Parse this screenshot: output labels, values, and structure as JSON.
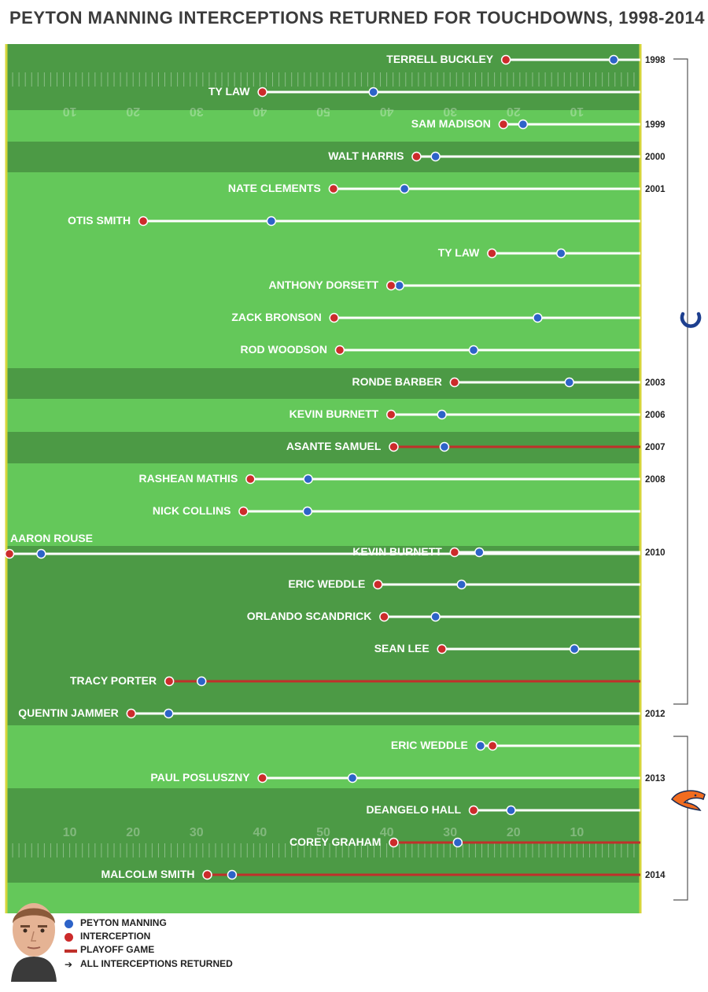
{
  "title": "PEYTON MANNING INTERCEPTIONS RETURNED FOR TOUCHDOWNS, 1998-2014",
  "colors": {
    "field_light": "#64c85a",
    "field_dark": "#4c9a45",
    "peyton": "#2d63c8",
    "interception": "#cc2b2b",
    "playoff": "#c0302a",
    "regular_line": "#ffffff",
    "border": "#d5d53a"
  },
  "icons": {
    "colts": "horseshoe-icon",
    "broncos": "bronco-head-icon",
    "photo": "peyton-manning-photo"
  },
  "yard_numbers_top": [
    "10",
    "20",
    "30",
    "40",
    "50",
    "40",
    "30",
    "20",
    "10"
  ],
  "yard_numbers_bottom": [
    "10",
    "20",
    "30",
    "40",
    "50",
    "40",
    "30",
    "20",
    "10"
  ],
  "legend": {
    "peyton": "PEYTON MANNING",
    "interception": "INTERCEPTION",
    "playoff": "PLAYOFF GAME",
    "all": "ALL INTERCEPTIONS RETURNED"
  },
  "chart_data": {
    "type": "dot-range",
    "title": "PEYTON MANNING INTERCEPTIONS RETURNED FOR TOUCHDOWNS, 1998-2014",
    "x_unit": "yards",
    "xlim": [
      0,
      100
    ],
    "series": [
      {
        "name": "PEYTON MANNING",
        "key": "peyton"
      },
      {
        "name": "INTERCEPTION",
        "key": "interception"
      }
    ],
    "rows": [
      {
        "player": "TERRELL BUCKLEY",
        "interception": 78.8,
        "peyton": 95.8,
        "playoff": false,
        "year": "1998"
      },
      {
        "player": "TY LAW",
        "interception": 40.4,
        "peyton": 57.9,
        "playoff": false,
        "year": ""
      },
      {
        "player": "SAM MADISON",
        "interception": 78.4,
        "peyton": 81.5,
        "playoff": false,
        "year": "1999"
      },
      {
        "player": "WALT HARRIS",
        "interception": 64.7,
        "peyton": 67.7,
        "playoff": false,
        "year": "2000"
      },
      {
        "player": "NATE CLEMENTS",
        "interception": 51.6,
        "peyton": 62.8,
        "playoff": false,
        "year": "2001"
      },
      {
        "player": "OTIS SMITH",
        "interception": 21.6,
        "peyton": 41.8,
        "playoff": false,
        "year": ""
      },
      {
        "player": "TY LAW",
        "interception": 76.6,
        "peyton": 87.5,
        "playoff": false,
        "year": ""
      },
      {
        "player": "ANTHONY DORSETT",
        "interception": 60.7,
        "peyton": 62.0,
        "playoff": false,
        "year": ""
      },
      {
        "player": "ZACK BRONSON",
        "interception": 51.7,
        "peyton": 83.8,
        "playoff": false,
        "year": ""
      },
      {
        "player": "ROD WOODSON",
        "interception": 52.6,
        "peyton": 73.7,
        "playoff": false,
        "year": ""
      },
      {
        "player": "RONDE BARBER",
        "interception": 70.7,
        "peyton": 88.8,
        "playoff": false,
        "year": "2003"
      },
      {
        "player": "KEVIN BURNETT",
        "interception": 60.7,
        "peyton": 68.7,
        "playoff": false,
        "year": "2006"
      },
      {
        "player": "ASANTE SAMUEL",
        "interception": 61.1,
        "peyton": 69.1,
        "playoff": true,
        "year": "2007"
      },
      {
        "player": "RASHEAN MATHIS",
        "interception": 38.5,
        "peyton": 47.6,
        "playoff": false,
        "year": "2008"
      },
      {
        "player": "NICK COLLINS",
        "interception": 37.4,
        "peyton": 47.5,
        "playoff": false,
        "year": ""
      },
      {
        "player": "AARON ROUSE",
        "interception": 0.5,
        "peyton": 5.5,
        "playoff": false,
        "year": ""
      },
      {
        "player": "KEVIN BURNETT",
        "interception": 70.7,
        "peyton": 74.6,
        "playoff": false,
        "year": "2010"
      },
      {
        "player": "ERIC WEDDLE",
        "interception": 58.6,
        "peyton": 71.8,
        "playoff": false,
        "year": ""
      },
      {
        "player": "ORLANDO SCANDRICK",
        "interception": 59.6,
        "peyton": 67.7,
        "playoff": false,
        "year": ""
      },
      {
        "player": "SEAN LEE",
        "interception": 68.7,
        "peyton": 89.6,
        "playoff": false,
        "year": ""
      },
      {
        "player": "TRACY PORTER",
        "interception": 25.7,
        "peyton": 30.8,
        "playoff": true,
        "year": ""
      },
      {
        "player": "QUENTIN JAMMER",
        "interception": 19.7,
        "peyton": 25.6,
        "playoff": false,
        "year": "2012"
      },
      {
        "player": "ERIC WEDDLE",
        "interception": 76.7,
        "peyton": 74.8,
        "playoff": false,
        "year": ""
      },
      {
        "player": "PAUL POSLUSZNY",
        "interception": 40.4,
        "peyton": 54.6,
        "playoff": false,
        "year": "2013"
      },
      {
        "player": "DEANGELO HALL",
        "interception": 73.7,
        "peyton": 79.6,
        "playoff": false,
        "year": ""
      },
      {
        "player": "COREY GRAHAM",
        "interception": 61.1,
        "peyton": 71.2,
        "playoff": true,
        "year": ""
      },
      {
        "player": "MALCOLM SMITH",
        "interception": 31.7,
        "peyton": 35.6,
        "playoff": true,
        "year": "2014"
      }
    ],
    "eras": [
      {
        "team": "Indianapolis Colts",
        "icon": "horseshoe-icon",
        "years": "1998-2011"
      },
      {
        "team": "Denver Broncos",
        "icon": "bronco-head-icon",
        "years": "2012-2014"
      }
    ],
    "legend_position": "bottom-left",
    "grid": false
  }
}
